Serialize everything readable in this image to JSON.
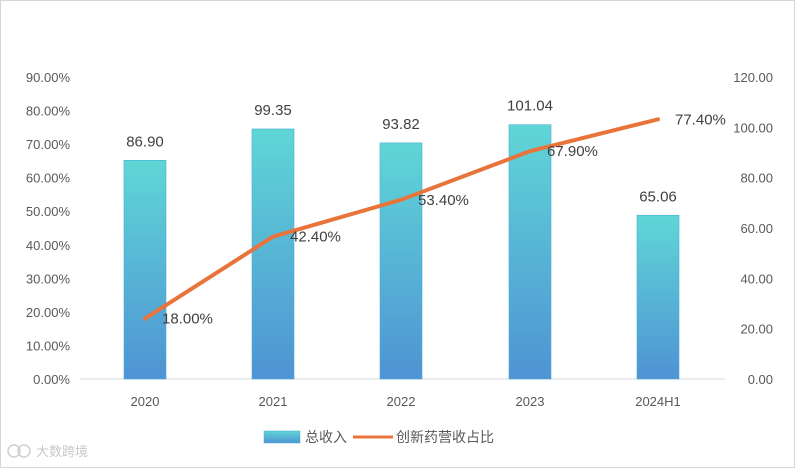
{
  "chart_data": {
    "type": "bar",
    "categories": [
      "2020",
      "2021",
      "2022",
      "2023",
      "2024H1"
    ],
    "series": [
      {
        "name": "总收入",
        "type": "bar",
        "axis": "right",
        "values": [
          86.9,
          99.35,
          93.82,
          101.04,
          65.06
        ],
        "labels": [
          "86.90",
          "99.35",
          "93.82",
          "101.04",
          "65.06"
        ],
        "color_top": "#5fd6d6",
        "color_bottom": "#4f93d4"
      },
      {
        "name": "创新药营收占比",
        "type": "line",
        "axis": "left",
        "values": [
          18.0,
          42.4,
          53.4,
          67.9,
          77.4
        ],
        "labels": [
          "18.00%",
          "42.40%",
          "53.40%",
          "67.90%",
          "77.40%"
        ],
        "color": "#e8743b"
      }
    ],
    "left_axis": {
      "ylim": [
        0,
        90
      ],
      "ticks": [
        "0.00%",
        "10.00%",
        "20.00%",
        "30.00%",
        "40.00%",
        "50.00%",
        "60.00%",
        "70.00%",
        "80.00%",
        "90.00%"
      ]
    },
    "right_axis": {
      "ylim": [
        0,
        120
      ],
      "ticks": [
        "0.00",
        "20.00",
        "40.00",
        "60.00",
        "80.00",
        "100.00",
        "120.00"
      ]
    },
    "grid": false,
    "legend_position": "bottom"
  },
  "watermark": {
    "text": "大数跨境",
    "logo_icon": "watermark-logo-icon"
  }
}
